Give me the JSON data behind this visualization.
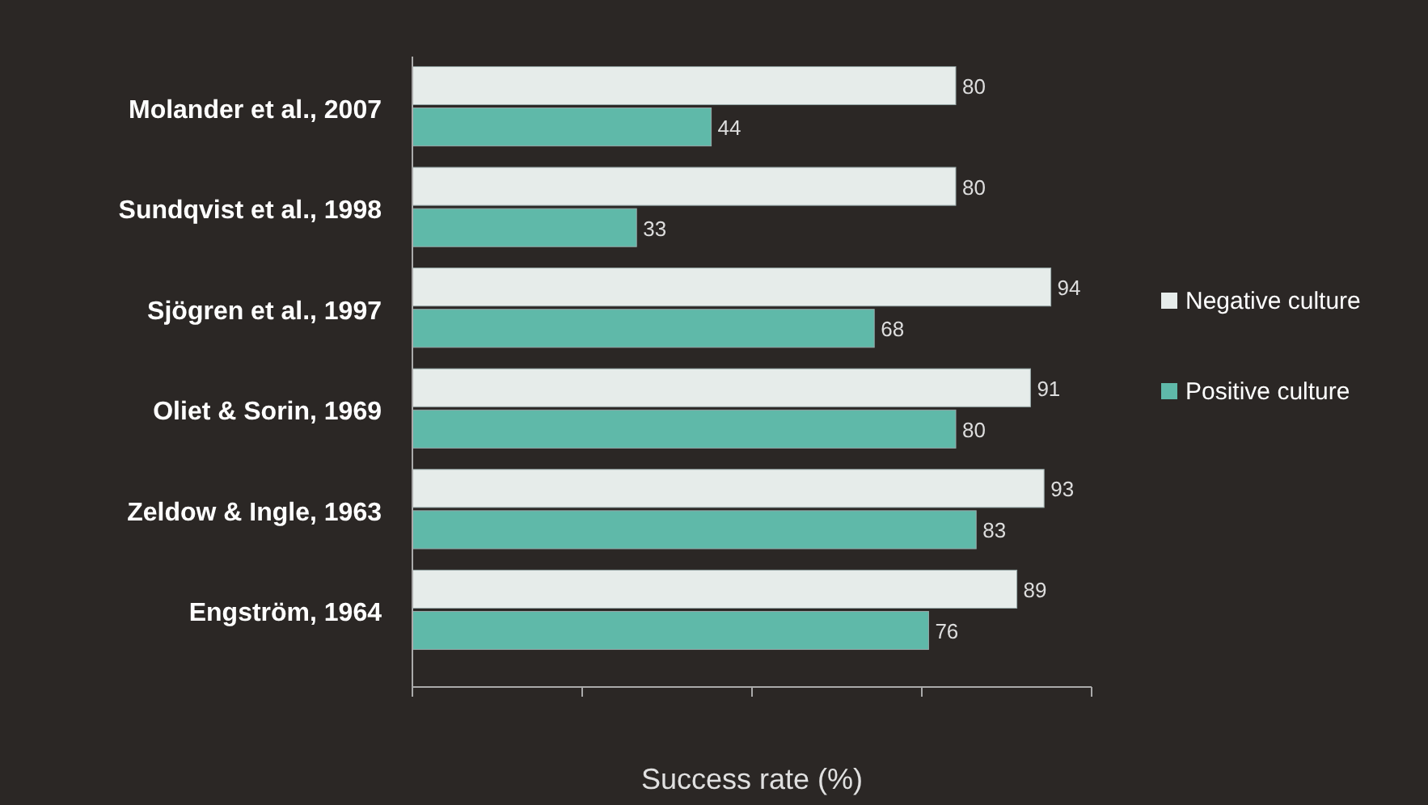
{
  "chart_data": {
    "type": "bar",
    "orientation": "horizontal",
    "xlabel": "Success rate (%)",
    "categories": [
      "Molander et al., 2007",
      "Sundqvist et al., 1998",
      "Sjögren et al., 1997",
      "Oliet & Sorin, 1969",
      "Zeldow & Ingle, 1963",
      "Engström, 1964"
    ],
    "series": [
      {
        "name": "Negative culture",
        "color": "#e6ecea",
        "values": [
          80,
          80,
          94,
          91,
          93,
          89
        ]
      },
      {
        "name": "Positive culture",
        "color": "#5fb9a9",
        "values": [
          44,
          33,
          68,
          80,
          83,
          76
        ]
      }
    ],
    "xlim": [
      0,
      100
    ],
    "xticks": [
      {
        "value": 0,
        "label": null
      },
      {
        "value": 25,
        "label": null
      },
      {
        "value": 50,
        "label": null
      },
      {
        "value": 75,
        "label": null
      },
      {
        "value": 100,
        "label": null
      }
    ],
    "data_labels": true,
    "legend": "right",
    "grid": false
  }
}
